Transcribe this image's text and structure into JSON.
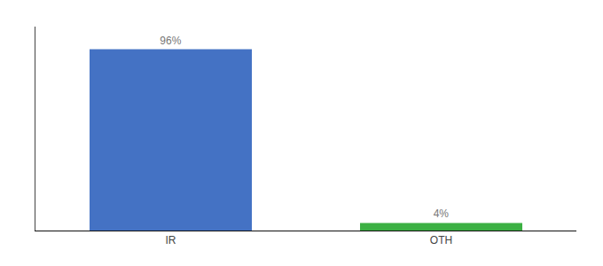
{
  "chart_data": {
    "type": "bar",
    "categories": [
      "IR",
      "OTH"
    ],
    "values": [
      96,
      4
    ],
    "value_labels": [
      "96%",
      "4%"
    ],
    "colors": [
      "#4472c4",
      "#3cb043"
    ],
    "ylim": [
      0,
      108
    ],
    "grid": false,
    "data_labels": true,
    "tick_labels": "x"
  }
}
